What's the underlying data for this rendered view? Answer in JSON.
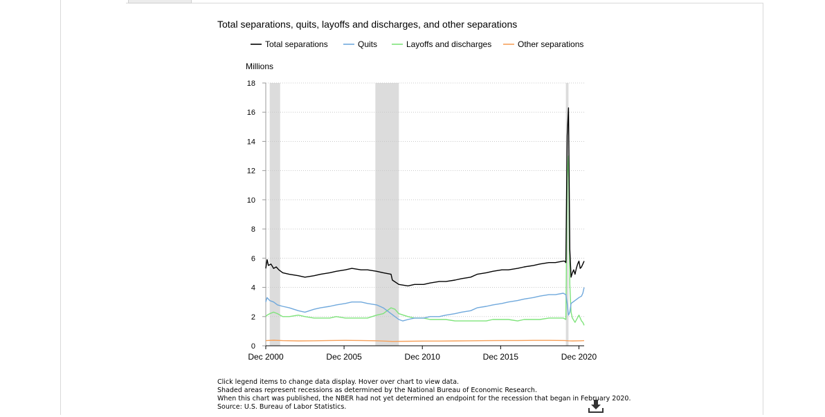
{
  "chart_data": {
    "type": "line",
    "title": "Total separations, quits, layoffs and discharges, and other separations",
    "ylabel": "Millions",
    "ylim": [
      0,
      18
    ],
    "yticks": [
      0,
      2,
      4,
      6,
      8,
      10,
      12,
      14,
      16,
      18
    ],
    "xlim": [
      "2000-12",
      "2021-04"
    ],
    "xticks": [
      {
        "date": "2000-12",
        "label": "Dec 2000"
      },
      {
        "date": "2005-12",
        "label": "Dec 2005"
      },
      {
        "date": "2010-12",
        "label": "Dec 2010"
      },
      {
        "date": "2015-12",
        "label": "Dec 2015"
      },
      {
        "date": "2020-12",
        "label": "Dec 2020"
      }
    ],
    "grid": true,
    "legend_position": "top",
    "recessions": [
      {
        "start": "2001-03",
        "end": "2001-11"
      },
      {
        "start": "2007-12",
        "end": "2009-06"
      },
      {
        "start": "2020-02",
        "end": "2020-04"
      }
    ],
    "series": [
      {
        "name": "Total separations",
        "color": "#000000",
        "points": [
          [
            "2000-12",
            5.3
          ],
          [
            "2001-01",
            5.9
          ],
          [
            "2001-02",
            5.5
          ],
          [
            "2001-04",
            5.6
          ],
          [
            "2001-06",
            5.3
          ],
          [
            "2001-08",
            5.4
          ],
          [
            "2001-10",
            5.2
          ],
          [
            "2002-01",
            5.0
          ],
          [
            "2002-06",
            4.9
          ],
          [
            "2003-01",
            4.8
          ],
          [
            "2003-06",
            4.7
          ],
          [
            "2004-01",
            4.8
          ],
          [
            "2004-06",
            4.9
          ],
          [
            "2005-01",
            5.0
          ],
          [
            "2005-06",
            5.1
          ],
          [
            "2006-01",
            5.2
          ],
          [
            "2006-06",
            5.3
          ],
          [
            "2007-01",
            5.2
          ],
          [
            "2007-06",
            5.2
          ],
          [
            "2008-01",
            5.1
          ],
          [
            "2008-06",
            5.0
          ],
          [
            "2008-12",
            4.9
          ],
          [
            "2009-01",
            4.5
          ],
          [
            "2009-06",
            4.2
          ],
          [
            "2010-01",
            4.1
          ],
          [
            "2010-06",
            4.2
          ],
          [
            "2011-01",
            4.2
          ],
          [
            "2011-06",
            4.3
          ],
          [
            "2012-01",
            4.4
          ],
          [
            "2012-06",
            4.4
          ],
          [
            "2013-01",
            4.5
          ],
          [
            "2013-06",
            4.6
          ],
          [
            "2014-01",
            4.7
          ],
          [
            "2014-06",
            4.9
          ],
          [
            "2015-01",
            5.0
          ],
          [
            "2015-06",
            5.1
          ],
          [
            "2016-01",
            5.2
          ],
          [
            "2016-06",
            5.2
          ],
          [
            "2017-01",
            5.3
          ],
          [
            "2017-06",
            5.4
          ],
          [
            "2018-01",
            5.5
          ],
          [
            "2018-06",
            5.6
          ],
          [
            "2019-01",
            5.7
          ],
          [
            "2019-06",
            5.7
          ],
          [
            "2019-12",
            5.8
          ],
          [
            "2020-01",
            5.8
          ],
          [
            "2020-02",
            5.7
          ],
          [
            "2020-03",
            14.4
          ],
          [
            "2020-04",
            16.3
          ],
          [
            "2020-05",
            6.6
          ],
          [
            "2020-06",
            4.7
          ],
          [
            "2020-07",
            5.0
          ],
          [
            "2020-08",
            5.2
          ],
          [
            "2020-09",
            4.9
          ],
          [
            "2020-10",
            5.3
          ],
          [
            "2020-11",
            5.6
          ],
          [
            "2020-12",
            5.8
          ],
          [
            "2021-01",
            5.3
          ],
          [
            "2021-02",
            5.4
          ],
          [
            "2021-03",
            5.6
          ],
          [
            "2021-04",
            5.8
          ]
        ]
      },
      {
        "name": "Quits",
        "color": "#6fa8dc",
        "points": [
          [
            "2000-12",
            3.0
          ],
          [
            "2001-01",
            3.3
          ],
          [
            "2001-03",
            3.1
          ],
          [
            "2001-06",
            3.0
          ],
          [
            "2001-09",
            2.8
          ],
          [
            "2002-01",
            2.7
          ],
          [
            "2002-06",
            2.6
          ],
          [
            "2003-01",
            2.4
          ],
          [
            "2003-06",
            2.3
          ],
          [
            "2004-01",
            2.5
          ],
          [
            "2004-06",
            2.6
          ],
          [
            "2005-01",
            2.7
          ],
          [
            "2005-06",
            2.8
          ],
          [
            "2006-01",
            2.9
          ],
          [
            "2006-06",
            3.0
          ],
          [
            "2007-01",
            3.0
          ],
          [
            "2007-06",
            2.9
          ],
          [
            "2008-01",
            2.8
          ],
          [
            "2008-06",
            2.6
          ],
          [
            "2008-12",
            2.2
          ],
          [
            "2009-06",
            1.8
          ],
          [
            "2009-09",
            1.7
          ],
          [
            "2010-01",
            1.8
          ],
          [
            "2010-06",
            1.9
          ],
          [
            "2011-01",
            1.9
          ],
          [
            "2011-06",
            2.0
          ],
          [
            "2012-01",
            2.0
          ],
          [
            "2012-06",
            2.1
          ],
          [
            "2013-01",
            2.2
          ],
          [
            "2013-06",
            2.3
          ],
          [
            "2014-01",
            2.4
          ],
          [
            "2014-06",
            2.6
          ],
          [
            "2015-01",
            2.7
          ],
          [
            "2015-06",
            2.8
          ],
          [
            "2016-01",
            2.9
          ],
          [
            "2016-06",
            3.0
          ],
          [
            "2017-01",
            3.1
          ],
          [
            "2017-06",
            3.2
          ],
          [
            "2018-01",
            3.3
          ],
          [
            "2018-06",
            3.4
          ],
          [
            "2019-01",
            3.5
          ],
          [
            "2019-06",
            3.5
          ],
          [
            "2019-12",
            3.6
          ],
          [
            "2020-02",
            3.5
          ],
          [
            "2020-03",
            2.9
          ],
          [
            "2020-04",
            2.1
          ],
          [
            "2020-05",
            2.3
          ],
          [
            "2020-06",
            2.9
          ],
          [
            "2020-09",
            3.1
          ],
          [
            "2020-12",
            3.3
          ],
          [
            "2021-02",
            3.4
          ],
          [
            "2021-03",
            3.6
          ],
          [
            "2021-04",
            4.0
          ]
        ]
      },
      {
        "name": "Layoffs and discharges",
        "color": "#7ee37a",
        "points": [
          [
            "2000-12",
            2.0
          ],
          [
            "2001-01",
            2.1
          ],
          [
            "2001-03",
            2.2
          ],
          [
            "2001-06",
            2.3
          ],
          [
            "2001-09",
            2.2
          ],
          [
            "2002-01",
            2.0
          ],
          [
            "2002-06",
            2.0
          ],
          [
            "2003-01",
            2.1
          ],
          [
            "2003-06",
            2.0
          ],
          [
            "2004-01",
            1.9
          ],
          [
            "2004-06",
            1.9
          ],
          [
            "2005-01",
            1.9
          ],
          [
            "2005-06",
            2.0
          ],
          [
            "2006-01",
            1.9
          ],
          [
            "2006-06",
            1.9
          ],
          [
            "2007-01",
            1.9
          ],
          [
            "2007-06",
            1.9
          ],
          [
            "2008-01",
            2.1
          ],
          [
            "2008-06",
            2.2
          ],
          [
            "2008-12",
            2.6
          ],
          [
            "2009-03",
            2.5
          ],
          [
            "2009-06",
            2.2
          ],
          [
            "2010-01",
            2.0
          ],
          [
            "2010-06",
            1.9
          ],
          [
            "2011-01",
            1.9
          ],
          [
            "2011-06",
            1.8
          ],
          [
            "2012-01",
            1.8
          ],
          [
            "2012-06",
            1.8
          ],
          [
            "2013-01",
            1.7
          ],
          [
            "2013-06",
            1.7
          ],
          [
            "2014-01",
            1.7
          ],
          [
            "2014-06",
            1.7
          ],
          [
            "2015-01",
            1.7
          ],
          [
            "2015-06",
            1.8
          ],
          [
            "2016-01",
            1.8
          ],
          [
            "2016-06",
            1.8
          ],
          [
            "2017-01",
            1.7
          ],
          [
            "2017-06",
            1.8
          ],
          [
            "2018-01",
            1.8
          ],
          [
            "2018-06",
            1.8
          ],
          [
            "2019-01",
            1.9
          ],
          [
            "2019-06",
            1.9
          ],
          [
            "2019-12",
            1.9
          ],
          [
            "2020-02",
            1.8
          ],
          [
            "2020-03",
            11.5
          ],
          [
            "2020-04",
            13.0
          ],
          [
            "2020-05",
            4.2
          ],
          [
            "2020-06",
            2.3
          ],
          [
            "2020-07",
            1.9
          ],
          [
            "2020-09",
            1.6
          ],
          [
            "2020-12",
            2.1
          ],
          [
            "2021-02",
            1.7
          ],
          [
            "2021-03",
            1.6
          ],
          [
            "2021-04",
            1.4
          ]
        ]
      },
      {
        "name": "Other separations",
        "color": "#f6a05a",
        "points": [
          [
            "2000-12",
            0.35
          ],
          [
            "2001-06",
            0.38
          ],
          [
            "2002-01",
            0.35
          ],
          [
            "2003-01",
            0.33
          ],
          [
            "2004-01",
            0.34
          ],
          [
            "2005-01",
            0.36
          ],
          [
            "2006-01",
            0.37
          ],
          [
            "2007-01",
            0.36
          ],
          [
            "2008-01",
            0.34
          ],
          [
            "2009-01",
            0.3
          ],
          [
            "2010-01",
            0.31
          ],
          [
            "2011-01",
            0.32
          ],
          [
            "2012-01",
            0.32
          ],
          [
            "2013-01",
            0.33
          ],
          [
            "2014-01",
            0.34
          ],
          [
            "2015-01",
            0.35
          ],
          [
            "2016-01",
            0.36
          ],
          [
            "2017-01",
            0.36
          ],
          [
            "2018-01",
            0.37
          ],
          [
            "2019-01",
            0.37
          ],
          [
            "2020-01",
            0.36
          ],
          [
            "2020-04",
            0.34
          ],
          [
            "2020-07",
            0.33
          ],
          [
            "2021-01",
            0.34
          ],
          [
            "2021-04",
            0.35
          ]
        ]
      }
    ]
  },
  "notes": [
    "Click legend items to change data display. Hover over chart to view data.",
    "Shaded areas represent recessions as determined by the National Bureau of Economic Research.",
    "When this chart was published, the NBER had not yet determined an endpoint for the recession that began in February 2020.",
    "Source: U.S. Bureau of Labor Statistics."
  ],
  "download_icon": "download-icon"
}
